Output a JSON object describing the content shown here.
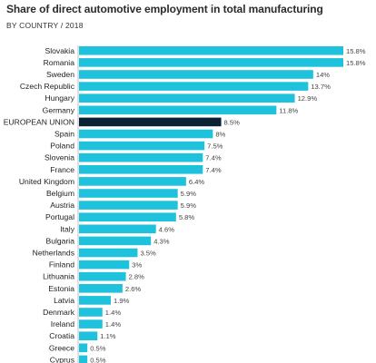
{
  "header": {
    "title": "Share of direct automotive employment in total manufacturing",
    "subtitle": "BY COUNTRY / 2018"
  },
  "colors": {
    "bar": "#1ec2dd",
    "highlight": "#0b2233"
  },
  "chart_data": {
    "type": "bar",
    "orientation": "horizontal",
    "title": "Share of direct automotive employment in total manufacturing",
    "subtitle": "BY COUNTRY / 2018",
    "xlabel": "",
    "ylabel": "",
    "unit": "%",
    "xlim": [
      0,
      15.8
    ],
    "grid": false,
    "legend": "none",
    "highlight": "EUROPEAN UNION",
    "categories": [
      "Slovakia",
      "Romania",
      "Sweden",
      "Czech Republic",
      "Hungary",
      "Germany",
      "EUROPEAN UNION",
      "Spain",
      "Poland",
      "Slovenia",
      "France",
      "United Kingdom",
      "Belgium",
      "Austria",
      "Portugal",
      "Italy",
      "Bulgaria",
      "Netherlands",
      "Finland",
      "Lithuania",
      "Estonia",
      "Latvia",
      "Denmark",
      "Ireland",
      "Croatia",
      "Greece",
      "Cyprus"
    ],
    "values": [
      15.8,
      15.8,
      14,
      13.7,
      12.9,
      11.8,
      8.5,
      8,
      7.5,
      7.4,
      7.4,
      6.4,
      5.9,
      5.9,
      5.8,
      4.6,
      4.3,
      3.5,
      3,
      2.8,
      2.6,
      1.9,
      1.4,
      1.4,
      1.1,
      0.5,
      0.5
    ],
    "labels": [
      "15.8%",
      "15.8%",
      "14%",
      "13.7%",
      "12.9%",
      "11.8%",
      "8.5%",
      "8%",
      "7.5%",
      "7.4%",
      "7.4%",
      "6.4%",
      "5.9%",
      "5.9%",
      "5.8%",
      "4.6%",
      "4.3%",
      "3.5%",
      "3%",
      "2.8%",
      "2.6%",
      "1.9%",
      "1.4%",
      "1.4%",
      "1.1%",
      "0.5%",
      "0.5%"
    ]
  }
}
